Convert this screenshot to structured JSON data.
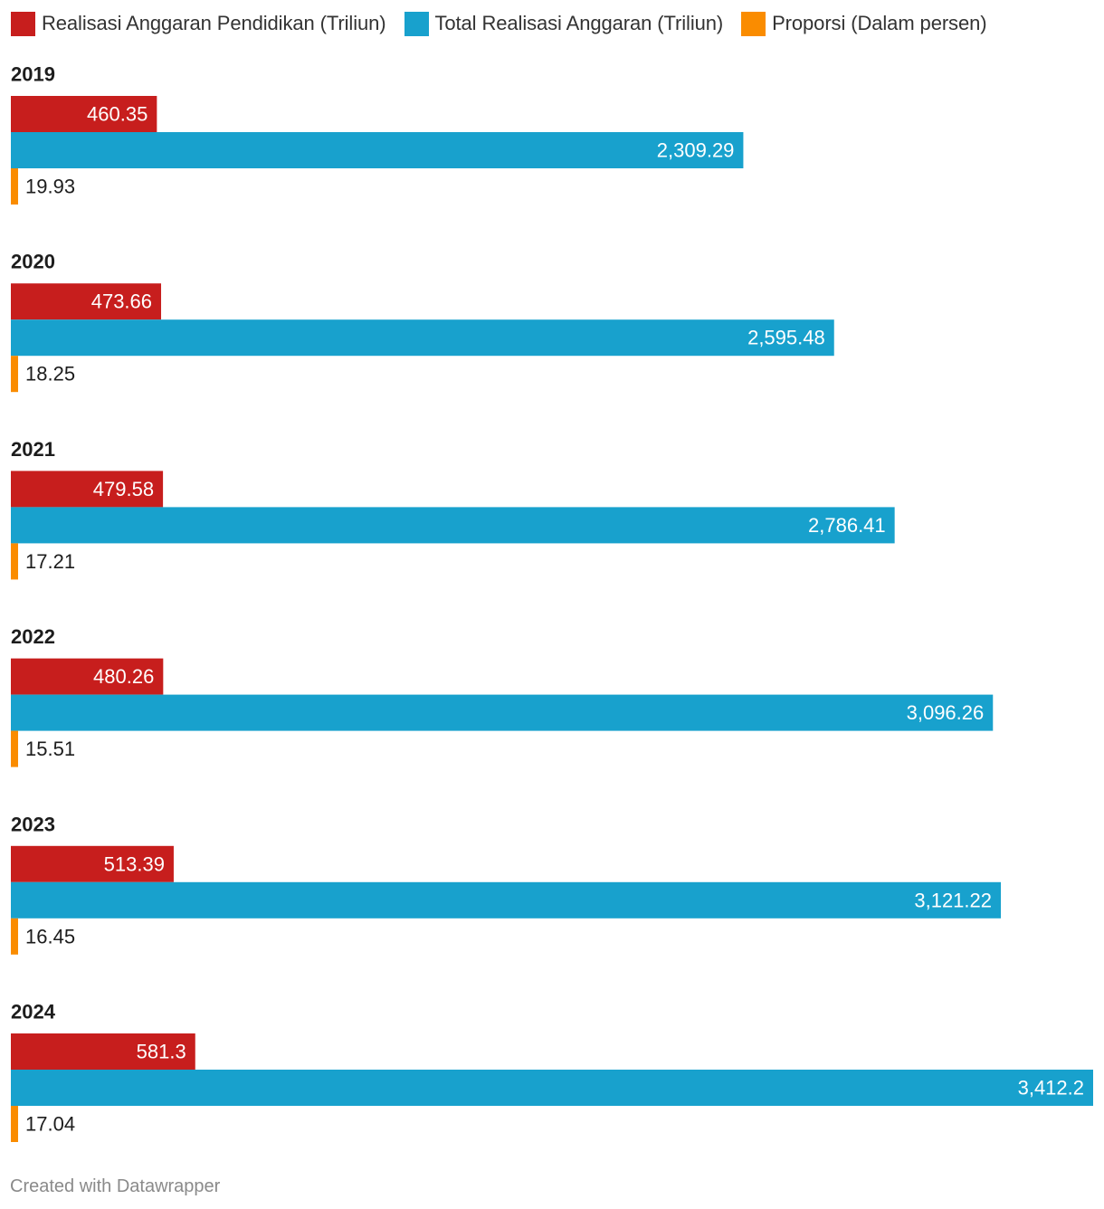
{
  "legend": [
    {
      "label": "Realisasi Anggaran Pendidikan (Triliun)",
      "color": "#c71e1d"
    },
    {
      "label": "Total Realisasi Anggaran (Triliun)",
      "color": "#18a1cd"
    },
    {
      "label": "Proporsi (Dalam persen)",
      "color": "#fa8c00"
    }
  ],
  "footer": {
    "credit": "Created with Datawrapper"
  },
  "chart_data": {
    "type": "bar",
    "orientation": "horizontal",
    "grouped": true,
    "categories": [
      "2019",
      "2020",
      "2021",
      "2022",
      "2023",
      "2024"
    ],
    "series": [
      {
        "name": "Realisasi Anggaran Pendidikan (Triliun)",
        "color": "#c71e1d",
        "values": [
          460.35,
          473.66,
          479.58,
          480.26,
          513.39,
          581.3
        ],
        "labels": [
          "460.35",
          "473.66",
          "479.58",
          "480.26",
          "513.39",
          "581.3"
        ]
      },
      {
        "name": "Total Realisasi Anggaran (Triliun)",
        "color": "#18a1cd",
        "values": [
          2309.29,
          2595.48,
          2786.41,
          3096.26,
          3121.22,
          3412.2
        ],
        "labels": [
          "2,309.29",
          "2,595.48",
          "2,786.41",
          "3,096.26",
          "3,121.22",
          "3,412.2"
        ]
      },
      {
        "name": "Proporsi (Dalam persen)",
        "color": "#fa8c00",
        "values": [
          19.93,
          18.25,
          17.21,
          15.51,
          16.45,
          17.04
        ],
        "labels": [
          "19.93",
          "18.25",
          "17.21",
          "15.51",
          "16.45",
          "17.04"
        ]
      }
    ],
    "xlim": [
      0,
      3412.2
    ],
    "grid": false,
    "legend_position": "top"
  }
}
